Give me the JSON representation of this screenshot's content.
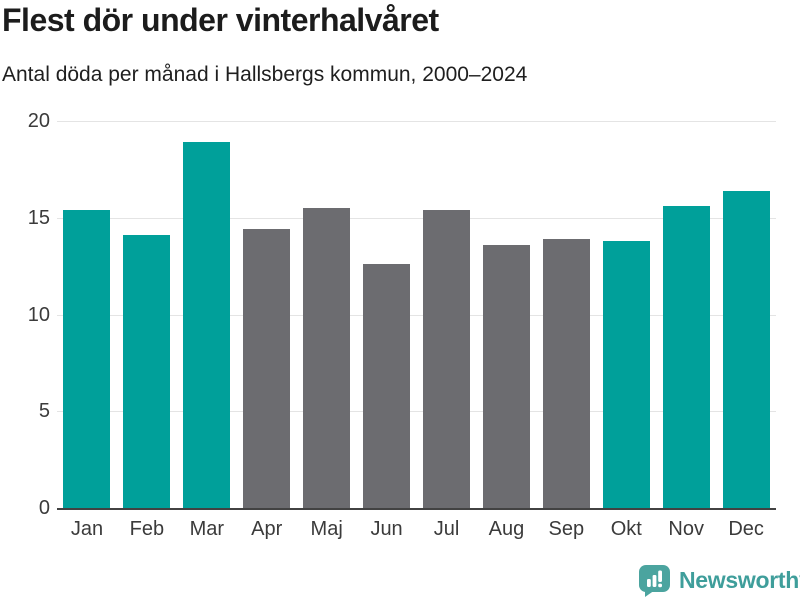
{
  "header": {
    "title": "Flest dör under vinterhalvåret",
    "subtitle": "Antal döda per månad i Hallsbergs kommun, 2000–2024"
  },
  "chart_data": {
    "type": "bar",
    "title": "Flest dör under vinterhalvåret",
    "subtitle": "Antal döda per månad i Hallsbergs kommun, 2000–2024",
    "categories": [
      "Jan",
      "Feb",
      "Mar",
      "Apr",
      "Maj",
      "Jun",
      "Jul",
      "Aug",
      "Sep",
      "Okt",
      "Nov",
      "Dec"
    ],
    "values": [
      15.4,
      14.1,
      18.9,
      14.4,
      15.5,
      12.6,
      15.4,
      13.6,
      13.9,
      13.8,
      15.6,
      16.4
    ],
    "highlighted": [
      true,
      true,
      true,
      false,
      false,
      false,
      false,
      false,
      false,
      true,
      true,
      true
    ],
    "xlabel": "",
    "ylabel": "",
    "ylim": [
      0,
      20
    ],
    "yticks": [
      0,
      5,
      10,
      15,
      20
    ],
    "grid": true,
    "legend": false,
    "highlight_color": "#00a09a",
    "base_color": "#6c6c70",
    "gridline_color": "#e4e4e4",
    "axis_line_color": "#424242"
  },
  "footer": {
    "brand": "Newsworthy",
    "brand_color": "#3f9e9b",
    "logo_icon": "bar-chart-speech-bubble-icon",
    "logo_color": "#4ba49f"
  }
}
